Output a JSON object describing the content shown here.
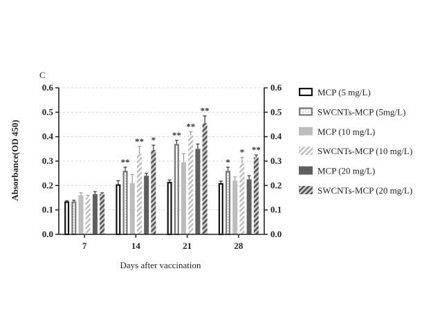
{
  "chart_data": {
    "type": "bar",
    "panel_label": "C",
    "title": "",
    "xlabel": "Days after vaccination",
    "ylabel": "Absorbance(OD 450)",
    "ylim": [
      0,
      0.6
    ],
    "yticks": [
      "0.0",
      "0.1",
      "0.2",
      "0.3",
      "0.4",
      "0.5",
      "0.6"
    ],
    "grid": true,
    "legend_position": "right",
    "categories": [
      "7",
      "14",
      "21",
      "28"
    ],
    "series": [
      {
        "name": "MCP (5 mg/L)",
        "style": "open-black",
        "values": [
          0.135,
          0.205,
          0.215,
          0.21
        ],
        "errors": [
          0.003,
          0.015,
          0.008,
          0.008
        ],
        "annotations": [
          "",
          "",
          "",
          ""
        ]
      },
      {
        "name": "SWCNTs-MCP (5mg/L)",
        "style": "open-gray-dotted",
        "values": [
          0.135,
          0.26,
          0.37,
          0.26
        ],
        "errors": [
          0.005,
          0.015,
          0.015,
          0.015
        ],
        "annotations": [
          "",
          "**",
          "**",
          "*"
        ]
      },
      {
        "name": "MCP (10 mg/L)",
        "style": "light-gray",
        "values": [
          0.16,
          0.21,
          0.295,
          0.22
        ],
        "errors": [
          0.01,
          0.035,
          0.035,
          0.015
        ],
        "annotations": [
          "",
          "",
          "",
          ""
        ]
      },
      {
        "name": "SWCNTs-MCP (10 mg/L)",
        "style": "light-hatch",
        "values": [
          0.15,
          0.33,
          0.405,
          0.29
        ],
        "errors": [
          0.01,
          0.03,
          0.015,
          0.025
        ],
        "annotations": [
          "",
          "**",
          "**",
          "*"
        ]
      },
      {
        "name": "MCP (20 mg/L)",
        "style": "dark-gray",
        "values": [
          0.165,
          0.24,
          0.35,
          0.225
        ],
        "errors": [
          0.01,
          0.01,
          0.02,
          0.015
        ],
        "annotations": [
          "",
          "",
          "",
          ""
        ]
      },
      {
        "name": "SWCNTs-MCP (20 mg/L)",
        "style": "dark-hatch",
        "values": [
          0.165,
          0.345,
          0.455,
          0.315
        ],
        "errors": [
          0.005,
          0.02,
          0.03,
          0.01
        ],
        "annotations": [
          "",
          "*",
          "**",
          "**"
        ]
      }
    ]
  }
}
